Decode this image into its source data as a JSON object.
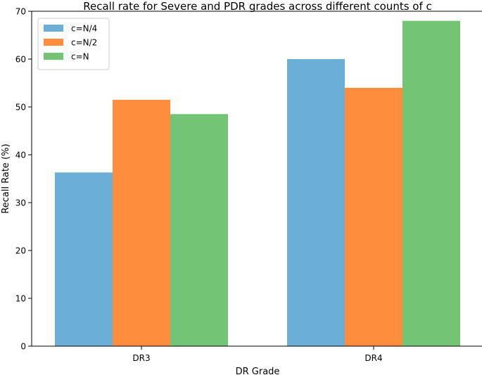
{
  "chart_data": {
    "type": "bar",
    "title": "Recall rate for Severe and PDR grades across different counts of c",
    "xlabel": "DR Grade",
    "ylabel": "Recall Rate (%)",
    "categories": [
      "DR3",
      "DR4"
    ],
    "series": [
      {
        "name": "c=N/4",
        "color": "#6baed6",
        "values": [
          36.3,
          60.0
        ]
      },
      {
        "name": "c=N/2",
        "color": "#fd8d3c",
        "values": [
          51.5,
          54.0
        ]
      },
      {
        "name": "c=N",
        "color": "#74c476",
        "values": [
          48.5,
          68.0
        ]
      }
    ],
    "ylim": [
      0,
      70
    ],
    "yticks": [
      "0",
      "10",
      "20",
      "30",
      "40",
      "50",
      "60",
      "70"
    ],
    "grid": false,
    "legend_position": "top-left"
  }
}
